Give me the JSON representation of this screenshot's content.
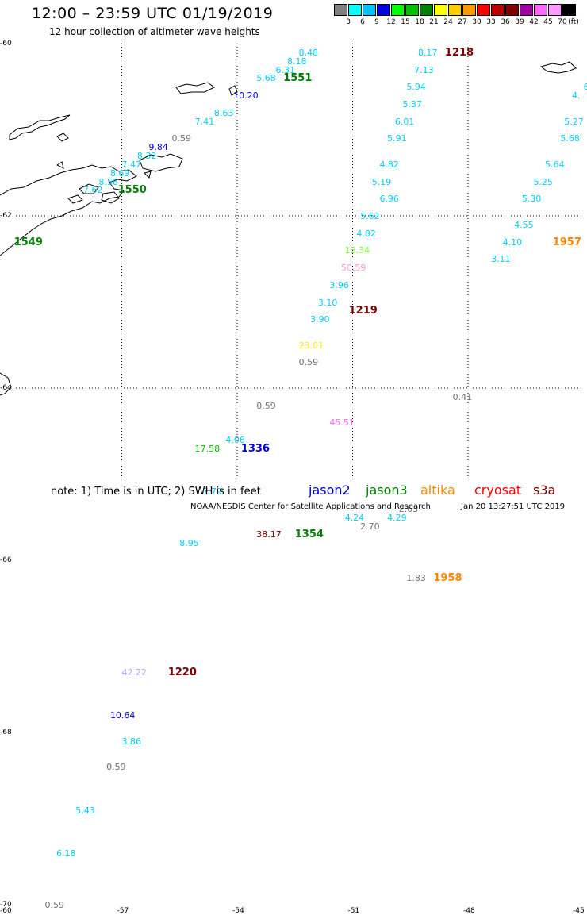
{
  "title": "12:00 – 23:59 UTC 01/19/2019",
  "subtitle": "12 hour collection of altimeter wave heights",
  "scale": {
    "labels": [
      "3",
      "6",
      "9",
      "12",
      "15",
      "18",
      "21",
      "24",
      "27",
      "30",
      "33",
      "36",
      "39",
      "42",
      "45",
      "70"
    ],
    "unit": "(ft)",
    "colors": [
      "#808080",
      "#00ffff",
      "#00bfff",
      "#0000e0",
      "#00ff00",
      "#00c000",
      "#008000",
      "#ffff00",
      "#ffcc00",
      "#ff9900",
      "#ff0000",
      "#c00000",
      "#800000",
      "#a000a0",
      "#ff66ff",
      "#ff99ff",
      "#000000"
    ]
  },
  "axes": {
    "lat_labels": [
      "-60",
      "-62",
      "-64",
      "-66",
      "-68",
      "-70"
    ],
    "lon_labels": [
      "-60",
      "-57",
      "-54",
      "-51",
      "-48",
      "-45"
    ]
  },
  "chart_data": {
    "type": "scatter",
    "description_units": "significant wave height in feet; time labels in UTC",
    "observations": [
      {
        "v": "8.48",
        "c": "#00d0ff",
        "lon": -52.4,
        "lat": -60.1
      },
      {
        "v": "8.18",
        "c": "#00d0ff",
        "lon": -52.7,
        "lat": -60.2
      },
      {
        "v": "6.31",
        "c": "#00d0ff",
        "lon": -53.0,
        "lat": -60.3
      },
      {
        "v": "5.68",
        "c": "#00d0ff",
        "lon": -53.5,
        "lat": -60.4
      },
      {
        "v": "10.20",
        "c": "#0000e0",
        "lon": -54.1,
        "lat": -60.6
      },
      {
        "v": "8.63",
        "c": "#00d0ff",
        "lon": -54.6,
        "lat": -60.8
      },
      {
        "v": "7.41",
        "c": "#00d0ff",
        "lon": -55.1,
        "lat": -60.9
      },
      {
        "v": "0.59",
        "c": "#707070",
        "lon": -55.7,
        "lat": -61.1
      },
      {
        "v": "9.84",
        "c": "#0000e0",
        "lon": -56.3,
        "lat": -61.2
      },
      {
        "v": "8.32",
        "c": "#00d0ff",
        "lon": -56.6,
        "lat": -61.3
      },
      {
        "v": "7.47",
        "c": "#00d0ff",
        "lon": -57.0,
        "lat": -61.4
      },
      {
        "v": "8.69",
        "c": "#00d0ff",
        "lon": -57.3,
        "lat": -61.5
      },
      {
        "v": "8.56",
        "c": "#00d0ff",
        "lon": -57.6,
        "lat": -61.6
      },
      {
        "v": "7.62",
        "c": "#00d0ff",
        "lon": -58.0,
        "lat": -61.7
      },
      {
        "v": "8.17",
        "c": "#00d0ff",
        "lon": -49.3,
        "lat": -60.1
      },
      {
        "v": "7.13",
        "c": "#00d0ff",
        "lon": -49.4,
        "lat": -60.3
      },
      {
        "v": "5.94",
        "c": "#00d0ff",
        "lon": -49.6,
        "lat": -60.5
      },
      {
        "v": "5.37",
        "c": "#00d0ff",
        "lon": -49.7,
        "lat": -60.7
      },
      {
        "v": "6.01",
        "c": "#00d0ff",
        "lon": -49.9,
        "lat": -60.9
      },
      {
        "v": "5.91",
        "c": "#00d0ff",
        "lon": -50.1,
        "lat": -61.1
      },
      {
        "v": "4.82",
        "c": "#00d0ff",
        "lon": -50.3,
        "lat": -61.4
      },
      {
        "v": "5.19",
        "c": "#00d0ff",
        "lon": -50.5,
        "lat": -61.6
      },
      {
        "v": "6.96",
        "c": "#00d0ff",
        "lon": -50.3,
        "lat": -61.8
      },
      {
        "v": "5.62",
        "c": "#00d0ff",
        "lon": -50.8,
        "lat": -62.0
      },
      {
        "v": "4.82",
        "c": "#00d0ff",
        "lon": -50.9,
        "lat": -62.2
      },
      {
        "v": "13.34",
        "c": "#80ff40",
        "lon": -51.2,
        "lat": -62.4
      },
      {
        "v": "50.59",
        "c": "#ff99cc",
        "lon": -51.3,
        "lat": -62.6
      },
      {
        "v": "3.96",
        "c": "#00d0ff",
        "lon": -51.6,
        "lat": -62.8
      },
      {
        "v": "3.10",
        "c": "#00d0ff",
        "lon": -51.9,
        "lat": -63.0
      },
      {
        "v": "3.90",
        "c": "#00d0ff",
        "lon": -52.1,
        "lat": -63.2
      },
      {
        "v": "23.01",
        "c": "#ffee00",
        "lon": -52.4,
        "lat": -63.5
      },
      {
        "v": "0.59",
        "c": "#707070",
        "lon": -52.4,
        "lat": -63.7
      },
      {
        "v": "0.59",
        "c": "#707070",
        "lon": -53.5,
        "lat": -64.2
      },
      {
        "v": "45.51",
        "c": "#ff66ff",
        "lon": -51.6,
        "lat": -64.4
      },
      {
        "v": "0.41",
        "c": "#707070",
        "lon": -48.4,
        "lat": -64.1
      },
      {
        "v": "17.58",
        "c": "#00c000",
        "lon": -55.1,
        "lat": -64.7
      },
      {
        "v": "4.06",
        "c": "#00d0ff",
        "lon": -54.3,
        "lat": -64.6
      },
      {
        "v": "7.79",
        "c": "#00d0ff",
        "lon": -54.9,
        "lat": -65.2
      },
      {
        "v": "8.95",
        "c": "#00d0ff",
        "lon": -55.5,
        "lat": -65.8
      },
      {
        "v": "38.17",
        "c": "#800000",
        "lon": -53.5,
        "lat": -65.7
      },
      {
        "v": "4.24",
        "c": "#00d0ff",
        "lon": -51.2,
        "lat": -65.5
      },
      {
        "v": "2.70",
        "c": "#707070",
        "lon": -50.8,
        "lat": -65.6
      },
      {
        "v": "4.29",
        "c": "#00d0ff",
        "lon": -50.1,
        "lat": -65.5
      },
      {
        "v": "2.63",
        "c": "#707070",
        "lon": -49.8,
        "lat": -65.4
      },
      {
        "v": "1.83",
        "c": "#707070",
        "lon": -49.6,
        "lat": -66.2
      },
      {
        "v": "42.22",
        "c": "#b0a0ff",
        "lon": -57.0,
        "lat": -67.3
      },
      {
        "v": "10.64",
        "c": "#0000e0",
        "lon": -57.3,
        "lat": -67.8
      },
      {
        "v": "3.86",
        "c": "#00d0ff",
        "lon": -57.0,
        "lat": -68.1
      },
      {
        "v": "0.59",
        "c": "#707070",
        "lon": -57.4,
        "lat": -68.4
      },
      {
        "v": "5.43",
        "c": "#00d0ff",
        "lon": -58.2,
        "lat": -68.9
      },
      {
        "v": "6.18",
        "c": "#00d0ff",
        "lon": -58.7,
        "lat": -69.4
      },
      {
        "v": "0.59",
        "c": "#707070",
        "lon": -59.0,
        "lat": -70.0
      },
      {
        "v": "4.",
        "c": "#00d0ff",
        "lon": -45.3,
        "lat": -60.6
      },
      {
        "v": "6.",
        "c": "#00d0ff",
        "lon": -45.0,
        "lat": -60.5
      },
      {
        "v": "5.27",
        "c": "#00d0ff",
        "lon": -45.5,
        "lat": -60.9
      },
      {
        "v": "5.68",
        "c": "#00d0ff",
        "lon": -45.6,
        "lat": -61.1
      },
      {
        "v": "5.64",
        "c": "#00d0ff",
        "lon": -46.0,
        "lat": -61.4
      },
      {
        "v": "5.25",
        "c": "#00d0ff",
        "lon": -46.3,
        "lat": -61.6
      },
      {
        "v": "5.30",
        "c": "#00d0ff",
        "lon": -46.6,
        "lat": -61.8
      },
      {
        "v": "4.55",
        "c": "#00d0ff",
        "lon": -46.8,
        "lat": -62.1
      },
      {
        "v": "4.10",
        "c": "#00d0ff",
        "lon": -47.1,
        "lat": -62.3
      },
      {
        "v": "3.11",
        "c": "#00d0ff",
        "lon": -47.4,
        "lat": -62.5
      }
    ],
    "time_labels": [
      {
        "t": "1551",
        "c": "#008000",
        "lon": -52.8,
        "lat": -60.4
      },
      {
        "t": "1218",
        "c": "#800000",
        "lon": -48.6,
        "lat": -60.1
      },
      {
        "t": "1550",
        "c": "#008000",
        "lon": -57.1,
        "lat": -61.7
      },
      {
        "t": "1549",
        "c": "#008000",
        "lon": -59.8,
        "lat": -62.3
      },
      {
        "t": "1957",
        "c": "#ff8800",
        "lon": -45.8,
        "lat": -62.3
      },
      {
        "t": "1219",
        "c": "#800000",
        "lon": -51.1,
        "lat": -63.1
      },
      {
        "t": "1336",
        "c": "#0000e0",
        "lon": -53.9,
        "lat": -64.7
      },
      {
        "t": "1354",
        "c": "#008000",
        "lon": -52.5,
        "lat": -65.7
      },
      {
        "t": "1958",
        "c": "#ff8800",
        "lon": -48.9,
        "lat": -66.2
      },
      {
        "t": "1220",
        "c": "#800000",
        "lon": -55.8,
        "lat": -67.3
      }
    ]
  },
  "note": "note: 1) Time is in UTC; 2) SWH is in feet",
  "satellites": [
    {
      "name": "jason2",
      "color": "#0000d0"
    },
    {
      "name": "jason3",
      "color": "#008000"
    },
    {
      "name": "altika",
      "color": "#ff8800"
    },
    {
      "name": "cryosat",
      "color": "#ff0000"
    },
    {
      "name": "s3a",
      "color": "#800000"
    }
  ],
  "credit": "NOAA/NESDIS Center for Satellite Applications and Research",
  "timestamp": "Jan 20 13:27:51 UTC 2019"
}
